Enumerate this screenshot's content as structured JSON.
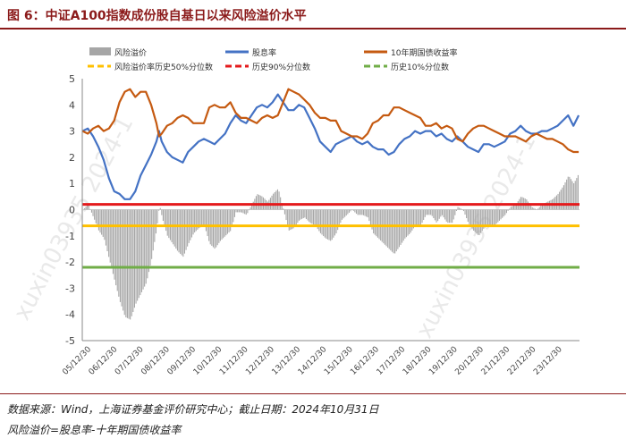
{
  "title": "图 6：中证A100指数成份股自基日以来风险溢价水平",
  "source": "数据来源：Wind，上海证券基金评价研究中心；截止日期：2024年10月31日",
  "note": "风险溢价=股息率-十年期国债收益率",
  "chart_data": {
    "type": "line",
    "ylim": [
      -5,
      5
    ],
    "yticks": [
      "5",
      "4",
      "3",
      "2",
      "1",
      "0",
      "-1",
      "-2",
      "-3",
      "-4",
      "-5"
    ],
    "xticks": [
      "05/12/30",
      "06/12/30",
      "07/12/30",
      "08/12/30",
      "09/12/30",
      "10/12/30",
      "11/12/30",
      "12/12/30",
      "13/12/30",
      "14/12/30",
      "15/12/30",
      "16/12/30",
      "17/12/30",
      "18/12/30",
      "19/12/30",
      "20/12/30",
      "21/12/30",
      "22/12/30",
      "23/12/30"
    ],
    "xrange": [
      2005.99,
      2024.83
    ],
    "legend": [
      {
        "label": "风险溢价",
        "color": "#a6a6a6",
        "kind": "bar"
      },
      {
        "label": "股息率",
        "color": "#4472c4",
        "kind": "line"
      },
      {
        "label": "10年期国债收益率",
        "color": "#c55a11",
        "kind": "line"
      },
      {
        "label": "风险溢价率历史50%分位数",
        "color": "#ffc000",
        "kind": "dash"
      },
      {
        "label": "历史90%分位数",
        "color": "#e41a1c",
        "kind": "dash"
      },
      {
        "label": "历史10%分位数",
        "color": "#70ad47",
        "kind": "dash"
      }
    ],
    "series": [
      {
        "name": "股息率",
        "color": "#4472c4",
        "x": [
          2006.0,
          2006.2,
          2006.4,
          2006.6,
          2006.8,
          2007.0,
          2007.2,
          2007.4,
          2007.6,
          2007.8,
          2008.0,
          2008.2,
          2008.4,
          2008.6,
          2008.8,
          2008.9,
          2009.0,
          2009.2,
          2009.4,
          2009.6,
          2009.8,
          2010.0,
          2010.2,
          2010.4,
          2010.6,
          2010.8,
          2011.0,
          2011.2,
          2011.4,
          2011.6,
          2011.8,
          2012.0,
          2012.2,
          2012.4,
          2012.6,
          2012.8,
          2013.0,
          2013.2,
          2013.4,
          2013.6,
          2013.8,
          2014.0,
          2014.2,
          2014.4,
          2014.6,
          2014.8,
          2015.0,
          2015.2,
          2015.4,
          2015.6,
          2015.8,
          2016.0,
          2016.2,
          2016.4,
          2016.6,
          2016.8,
          2017.0,
          2017.2,
          2017.4,
          2017.6,
          2017.8,
          2018.0,
          2018.2,
          2018.4,
          2018.6,
          2018.8,
          2019.0,
          2019.2,
          2019.4,
          2019.6,
          2019.8,
          2020.0,
          2020.2,
          2020.4,
          2020.6,
          2020.8,
          2021.0,
          2021.2,
          2021.4,
          2021.6,
          2021.8,
          2022.0,
          2022.2,
          2022.4,
          2022.6,
          2022.8,
          2023.0,
          2023.2,
          2023.4,
          2023.6,
          2023.8,
          2024.0,
          2024.2,
          2024.4,
          2024.6,
          2024.8
        ],
        "y": [
          3.0,
          3.1,
          2.8,
          2.4,
          1.9,
          1.2,
          0.7,
          0.6,
          0.4,
          0.4,
          0.7,
          1.3,
          1.7,
          2.1,
          2.6,
          3.0,
          2.6,
          2.2,
          2.0,
          1.9,
          1.8,
          2.2,
          2.4,
          2.6,
          2.7,
          2.6,
          2.5,
          2.7,
          2.9,
          3.3,
          3.6,
          3.4,
          3.3,
          3.6,
          3.9,
          4.0,
          3.9,
          4.1,
          4.4,
          4.1,
          3.8,
          3.8,
          4.0,
          3.9,
          3.5,
          3.1,
          2.6,
          2.4,
          2.2,
          2.5,
          2.6,
          2.7,
          2.8,
          2.6,
          2.5,
          2.6,
          2.4,
          2.3,
          2.3,
          2.1,
          2.2,
          2.5,
          2.7,
          2.8,
          3.0,
          2.9,
          3.0,
          3.0,
          2.8,
          2.9,
          2.7,
          2.6,
          2.8,
          2.6,
          2.4,
          2.3,
          2.2,
          2.5,
          2.5,
          2.4,
          2.5,
          2.6,
          2.9,
          3.0,
          3.2,
          3.0,
          2.9,
          2.9,
          3.0,
          3.0,
          3.1,
          3.2,
          3.4,
          3.6,
          3.2,
          3.6
        ]
      },
      {
        "name": "10年期国债收益率",
        "color": "#c55a11",
        "x": [
          2006.0,
          2006.2,
          2006.4,
          2006.6,
          2006.8,
          2007.0,
          2007.2,
          2007.4,
          2007.6,
          2007.8,
          2008.0,
          2008.2,
          2008.4,
          2008.6,
          2008.8,
          2008.9,
          2009.0,
          2009.2,
          2009.4,
          2009.6,
          2009.8,
          2010.0,
          2010.2,
          2010.4,
          2010.6,
          2010.8,
          2011.0,
          2011.2,
          2011.4,
          2011.6,
          2011.8,
          2012.0,
          2012.2,
          2012.4,
          2012.6,
          2012.8,
          2013.0,
          2013.2,
          2013.4,
          2013.6,
          2013.8,
          2014.0,
          2014.2,
          2014.4,
          2014.6,
          2014.8,
          2015.0,
          2015.2,
          2015.4,
          2015.6,
          2015.8,
          2016.0,
          2016.2,
          2016.4,
          2016.6,
          2016.8,
          2017.0,
          2017.2,
          2017.4,
          2017.6,
          2017.8,
          2018.0,
          2018.2,
          2018.4,
          2018.6,
          2018.8,
          2019.0,
          2019.2,
          2019.4,
          2019.6,
          2019.8,
          2020.0,
          2020.2,
          2020.4,
          2020.6,
          2020.8,
          2021.0,
          2021.2,
          2021.4,
          2021.6,
          2021.8,
          2022.0,
          2022.2,
          2022.4,
          2022.6,
          2022.8,
          2023.0,
          2023.2,
          2023.4,
          2023.6,
          2023.8,
          2024.0,
          2024.2,
          2024.4,
          2024.6,
          2024.8
        ],
        "y": [
          3.0,
          2.9,
          3.1,
          3.2,
          3.0,
          3.1,
          3.4,
          4.1,
          4.5,
          4.6,
          4.3,
          4.5,
          4.5,
          4.0,
          3.3,
          2.8,
          2.9,
          3.2,
          3.3,
          3.5,
          3.6,
          3.5,
          3.3,
          3.3,
          3.3,
          3.9,
          4.0,
          3.9,
          3.9,
          4.1,
          3.7,
          3.5,
          3.5,
          3.4,
          3.3,
          3.5,
          3.6,
          3.5,
          3.6,
          4.1,
          4.6,
          4.5,
          4.4,
          4.2,
          4.0,
          3.7,
          3.5,
          3.5,
          3.4,
          3.4,
          3.0,
          2.9,
          2.8,
          2.8,
          2.7,
          2.9,
          3.3,
          3.4,
          3.6,
          3.6,
          3.9,
          3.9,
          3.8,
          3.7,
          3.6,
          3.5,
          3.2,
          3.2,
          3.3,
          3.1,
          3.2,
          3.1,
          2.7,
          2.6,
          2.9,
          3.1,
          3.2,
          3.2,
          3.1,
          3.0,
          2.9,
          2.8,
          2.8,
          2.8,
          2.7,
          2.6,
          2.8,
          2.9,
          2.8,
          2.7,
          2.7,
          2.6,
          2.5,
          2.3,
          2.2,
          2.2
        ]
      },
      {
        "name": "风险溢价",
        "color": "#a6a6a6",
        "kind": "bar",
        "x": [
          2006.0,
          2006.2,
          2006.4,
          2006.6,
          2006.8,
          2007.0,
          2007.2,
          2007.4,
          2007.6,
          2007.8,
          2008.0,
          2008.2,
          2008.4,
          2008.6,
          2008.8,
          2008.9,
          2009.0,
          2009.2,
          2009.4,
          2009.6,
          2009.8,
          2010.0,
          2010.2,
          2010.4,
          2010.6,
          2010.8,
          2011.0,
          2011.2,
          2011.4,
          2011.6,
          2011.8,
          2012.0,
          2012.2,
          2012.4,
          2012.6,
          2012.8,
          2013.0,
          2013.2,
          2013.4,
          2013.6,
          2013.8,
          2014.0,
          2014.2,
          2014.4,
          2014.6,
          2014.8,
          2015.0,
          2015.2,
          2015.4,
          2015.6,
          2015.8,
          2016.0,
          2016.2,
          2016.4,
          2016.6,
          2016.8,
          2017.0,
          2017.2,
          2017.4,
          2017.6,
          2017.8,
          2018.0,
          2018.2,
          2018.4,
          2018.6,
          2018.8,
          2019.0,
          2019.2,
          2019.4,
          2019.6,
          2019.8,
          2020.0,
          2020.2,
          2020.4,
          2020.6,
          2020.8,
          2021.0,
          2021.2,
          2021.4,
          2021.6,
          2021.8,
          2022.0,
          2022.2,
          2022.4,
          2022.6,
          2022.8,
          2023.0,
          2023.2,
          2023.4,
          2023.6,
          2023.8,
          2024.0,
          2024.2,
          2024.4,
          2024.6,
          2024.8
        ],
        "y": [
          0.0,
          0.2,
          -0.3,
          -0.8,
          -1.1,
          -1.9,
          -2.7,
          -3.5,
          -4.1,
          -4.2,
          -3.6,
          -3.2,
          -2.8,
          -1.9,
          -0.7,
          0.2,
          -0.3,
          -1.0,
          -1.3,
          -1.6,
          -1.8,
          -1.3,
          -0.9,
          -0.7,
          -0.6,
          -1.3,
          -1.5,
          -1.2,
          -1.0,
          -0.8,
          -0.1,
          -0.1,
          -0.2,
          0.2,
          0.6,
          0.5,
          0.3,
          0.6,
          0.8,
          0.0,
          -0.8,
          -0.7,
          -0.4,
          -0.3,
          -0.5,
          -0.6,
          -0.9,
          -1.1,
          -1.2,
          -0.9,
          -0.4,
          -0.2,
          0.0,
          -0.2,
          -0.2,
          -0.3,
          -0.9,
          -1.1,
          -1.3,
          -1.5,
          -1.7,
          -1.4,
          -1.1,
          -0.9,
          -0.6,
          -0.6,
          -0.2,
          -0.2,
          -0.5,
          -0.2,
          -0.5,
          -0.5,
          0.1,
          0.0,
          -0.5,
          -0.8,
          -1.0,
          -0.7,
          -0.6,
          -0.6,
          -0.4,
          -0.2,
          0.1,
          0.2,
          0.5,
          0.4,
          0.1,
          0.0,
          0.2,
          0.3,
          0.4,
          0.6,
          0.9,
          1.3,
          1.0,
          1.4
        ]
      }
    ],
    "hlines": [
      {
        "name": "历史90%分位数",
        "value": 0.2,
        "color": "#e41a1c"
      },
      {
        "name": "风险溢价率历史50%分位数",
        "value": -0.62,
        "color": "#ffc000"
      },
      {
        "name": "历史10%分位数",
        "value": -2.2,
        "color": "#70ad47"
      }
    ],
    "watermark": [
      "xuxin03935 2024-1",
      "xuxin03935 2024-1"
    ]
  }
}
